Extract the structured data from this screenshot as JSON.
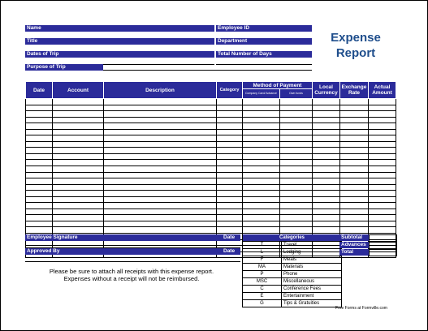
{
  "title_line1": "Expense",
  "title_line2": "Report",
  "header_fields": {
    "name": "Name",
    "employee_id": "Employee ID",
    "title": "Title",
    "department": "Department",
    "dates_of_trip": "Dates of Trip",
    "total_days": "Total Number of Days",
    "purpose": "Purpose of Trip"
  },
  "table": {
    "date": "Date",
    "account": "Account",
    "description": "Description",
    "category": "Category",
    "method": "Method of Payment",
    "company_card": "Company Card/ Advance",
    "own_funds": "Own funds",
    "local_currency_1": "Local",
    "local_currency_2": "Currency",
    "exchange_rate_1": "Exchange",
    "exchange_rate_2": "Rate",
    "actual_amount_1": "Actual",
    "actual_amount_2": "Amount",
    "row_count": 26
  },
  "signature": {
    "employee_signature": "Employee Signature",
    "date1": "Date",
    "approved_by": "Approved By",
    "date2": "Date"
  },
  "categories": {
    "header": "Categories",
    "items": [
      {
        "code": "T",
        "name": "Travel"
      },
      {
        "code": "L",
        "name": "Lodging"
      },
      {
        "code": "F",
        "name": "Meals"
      },
      {
        "code": "MA",
        "name": "Materials"
      },
      {
        "code": "P",
        "name": "Phone"
      },
      {
        "code": "MSC",
        "name": "Miscellaneous"
      },
      {
        "code": "C",
        "name": "Conference Fees"
      },
      {
        "code": "E",
        "name": "Entertainment"
      },
      {
        "code": "G",
        "name": "Tips & Gratuities"
      }
    ]
  },
  "totals": {
    "subtotal": "Subtotal",
    "advances": "Advances",
    "total": "Total"
  },
  "note_line1": "Please be sure to attach all receipts with this expense report.",
  "note_line2": "Expenses without a receipt will not be reimbursed.",
  "footer": "Free Forms at Formville.com",
  "colors": {
    "header_bar": "#2b2b9a",
    "title": "#1f4e8c"
  }
}
